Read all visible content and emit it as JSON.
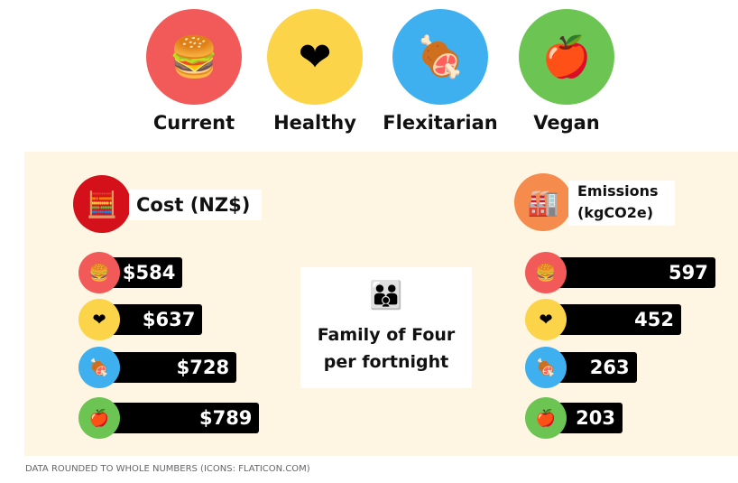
{
  "diets": [
    {
      "name": "Current",
      "color": "#f25a5a",
      "icon": "fast-food-icon",
      "glyph": "🍔"
    },
    {
      "name": "Healthy",
      "color": "#fcd44a",
      "icon": "heart-icon",
      "glyph": "❤"
    },
    {
      "name": "Flexitarian",
      "color": "#3fb0ef",
      "icon": "meat-icon",
      "glyph": "🍖"
    },
    {
      "name": "Vegan",
      "color": "#6cc553",
      "icon": "vegetables-icon",
      "glyph": "🍎"
    }
  ],
  "center": {
    "line1": "Family of Four",
    "line2": "per fortnight",
    "icon": "family-icon"
  },
  "footnote": "DATA ROUNDED TO WHOLE NUMBERS (ICONS: FLATICON.COM)",
  "chart_data": [
    {
      "type": "bar",
      "title": "Cost (NZ$)",
      "categories": [
        "Current",
        "Healthy",
        "Flexitarian",
        "Vegan"
      ],
      "values": [
        584,
        637,
        728,
        789
      ],
      "labels": [
        "$584",
        "$637",
        "$728",
        "$789"
      ]
    },
    {
      "type": "bar",
      "title": "Emissions (kgCO2e)",
      "title_line1": "Emissions",
      "title_line2": "(kgCO2e)",
      "categories": [
        "Current",
        "Healthy",
        "Flexitarian",
        "Vegan"
      ],
      "values": [
        597,
        452,
        263,
        203
      ],
      "labels": [
        "597",
        "452",
        "263",
        "203"
      ]
    }
  ]
}
